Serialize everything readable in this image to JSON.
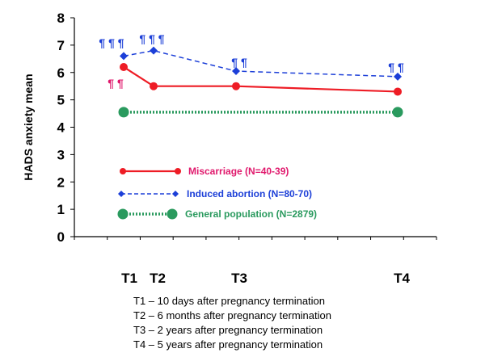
{
  "chart_data": {
    "type": "line",
    "title": "",
    "xlabel": "",
    "ylabel": "HADS anxiety mean",
    "ylim": [
      0,
      8
    ],
    "yticks": [
      "0",
      "1",
      "2",
      "3",
      "4",
      "5",
      "6",
      "7",
      "8"
    ],
    "categories": [
      "T1",
      "T2",
      "T3",
      "T4"
    ],
    "series": [
      {
        "name": "Miscarriage (N=40-39)",
        "color": "#ee1c25",
        "marker": "circle",
        "line": "solid",
        "points": [
          [
            1,
            6.2
          ],
          [
            2,
            5.5
          ],
          [
            3,
            5.5
          ],
          [
            4,
            5.3
          ]
        ],
        "annotations": [
          {
            "at": 1,
            "text": "¶ ¶"
          }
        ]
      },
      {
        "name": "Induced abortion (N=80-70)",
        "color": "#1c3fd8",
        "marker": "diamond",
        "line": "dashed",
        "points": [
          [
            1,
            6.6
          ],
          [
            2,
            6.8
          ],
          [
            3,
            6.05
          ],
          [
            4,
            5.85
          ]
        ],
        "annotations": [
          {
            "at": 1,
            "text": "¶ ¶ ¶"
          },
          {
            "at": 2,
            "text": "¶ ¶ ¶"
          },
          {
            "at": 3,
            "text": "¶ ¶"
          },
          {
            "at": 4,
            "text": "¶ ¶"
          }
        ]
      },
      {
        "name": "General population (N=2879)",
        "color": "#2a9a5e",
        "marker": "circle",
        "line": "dotted",
        "points": [
          [
            1,
            4.55
          ],
          [
            4,
            4.55
          ]
        ],
        "annotations": []
      }
    ],
    "legend_colors": [
      "#e0186c",
      "#1c3fd8",
      "#2a9a5e"
    ],
    "legend_position": "bottom-left inside plot",
    "footnotes": [
      "T1 – 10 days after pregnancy termination",
      "T2 – 6 months after pregnancy termination",
      "T3 – 2 years after pregnancy termination",
      "T4 – 5 years after pregnancy termination"
    ]
  }
}
